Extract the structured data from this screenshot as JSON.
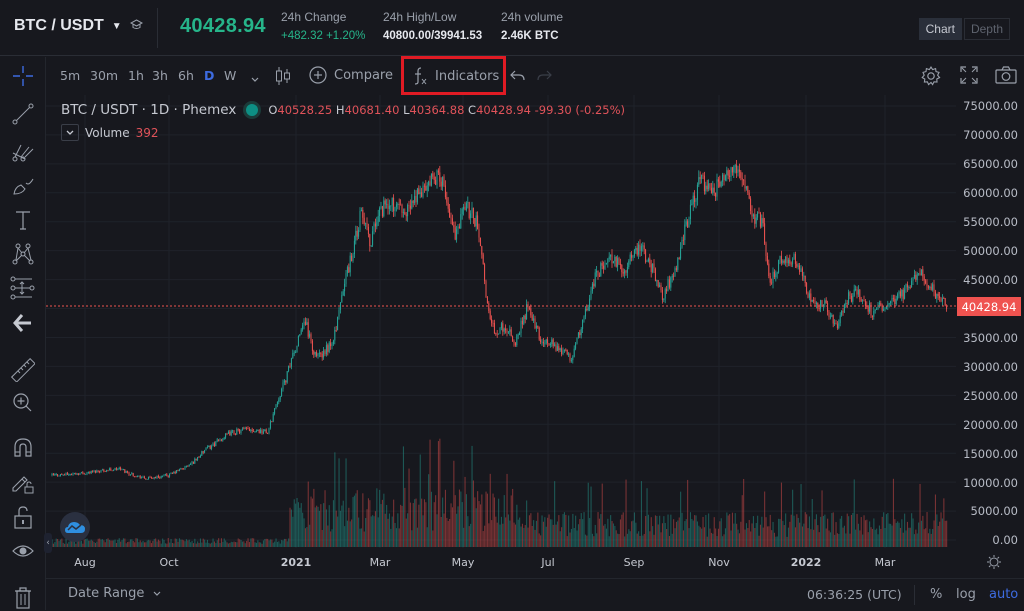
{
  "header": {
    "pair": "BTC / USDT",
    "last_price": "40428.94",
    "stats": [
      {
        "label": "24h Change",
        "value": "+482.32 +1.20%"
      },
      {
        "label": "24h High/Low",
        "value": "40800.00/39941.53"
      },
      {
        "label": "24h volume",
        "value": "2.46K BTC"
      }
    ],
    "view_tabs": [
      {
        "label": "Chart",
        "active": true
      },
      {
        "label": "Depth",
        "active": false
      }
    ]
  },
  "toolbar": {
    "timeframes": [
      {
        "label": "5m",
        "active": false
      },
      {
        "label": "30m",
        "active": false
      },
      {
        "label": "1h",
        "active": false
      },
      {
        "label": "3h",
        "active": false
      },
      {
        "label": "6h",
        "active": false
      },
      {
        "label": "D",
        "active": true
      },
      {
        "label": "W",
        "active": false
      }
    ],
    "compare_label": "Compare",
    "indicators_label": "Indicators"
  },
  "sidebar": {
    "tools": [
      "crosshair",
      "trend-line",
      "pitchfork",
      "brush",
      "text",
      "pattern",
      "measure-prediction",
      "back-arrow",
      "ruler",
      "zoom-in",
      "magnet",
      "lock-drawings",
      "lock",
      "eye",
      "trash"
    ]
  },
  "legend": {
    "title": "BTC / USDT · 1D · Phemex",
    "open_label": "O",
    "open": "40528.25",
    "high_label": "H",
    "high": "40681.40",
    "low_label": "L",
    "low": "40364.88",
    "close_label": "C",
    "close": "40428.94",
    "change": "-99.30 (-0.25%)",
    "volume_label": "Volume",
    "volume_value": "392"
  },
  "colors": {
    "up": "#26a69a",
    "down": "#ef5350",
    "accent": "#3d6be0",
    "last_price_green": "#26b58a",
    "highlight_box": "#e01b24"
  },
  "chart_data": {
    "type": "candlestick",
    "title": "BTC / USDT · 1D · Phemex",
    "y_ticks": [
      "75000.00",
      "70000.00",
      "65000.00",
      "60000.00",
      "55000.00",
      "50000.00",
      "45000.00",
      "40000.00",
      "35000.00",
      "30000.00",
      "25000.00",
      "20000.00",
      "15000.00",
      "10000.00",
      "5000.00",
      "0.00"
    ],
    "x_ticks": [
      "Aug",
      "Oct",
      "2021",
      "Mar",
      "May",
      "Jul",
      "Sep",
      "Nov",
      "2022",
      "Mar"
    ],
    "current_price": "40428.94",
    "ylim": [
      0,
      75000
    ],
    "price_path_monthly": [
      {
        "month": "2020-07",
        "close": 11300
      },
      {
        "month": "2020-08",
        "close": 11700
      },
      {
        "month": "2020-09",
        "close": 10800
      },
      {
        "month": "2020-10",
        "close": 13800
      },
      {
        "month": "2020-11",
        "close": 19700
      },
      {
        "month": "2020-12",
        "close": 29000
      },
      {
        "month": "2021-01",
        "close": 33100
      },
      {
        "month": "2021-02",
        "close": 45200
      },
      {
        "month": "2021-03",
        "close": 58800
      },
      {
        "month": "2021-04",
        "close": 57700
      },
      {
        "month": "2021-05",
        "close": 37300
      },
      {
        "month": "2021-06",
        "close": 35000
      },
      {
        "month": "2021-07",
        "close": 41500
      },
      {
        "month": "2021-08",
        "close": 47100
      },
      {
        "month": "2021-09",
        "close": 43800
      },
      {
        "month": "2021-10",
        "close": 61300
      },
      {
        "month": "2021-11",
        "close": 57000
      },
      {
        "month": "2021-12",
        "close": 46200
      },
      {
        "month": "2022-01",
        "close": 38500
      },
      {
        "month": "2022-02",
        "close": 43200
      },
      {
        "month": "2022-03",
        "close": 45500
      },
      {
        "month": "2022-04",
        "close": 40429
      }
    ],
    "key_points": {
      "ath": 69000,
      "ath_month": "2021-11",
      "apr_2021_high": 64800,
      "jul_2021_low": 29300,
      "jan_2022_low": 33000
    }
  },
  "bottom": {
    "date_range": "Date Range",
    "clock": "06:36:25 (UTC)",
    "options": [
      {
        "label": "%",
        "active": false
      },
      {
        "label": "log",
        "active": false
      },
      {
        "label": "auto",
        "active": true
      }
    ]
  }
}
